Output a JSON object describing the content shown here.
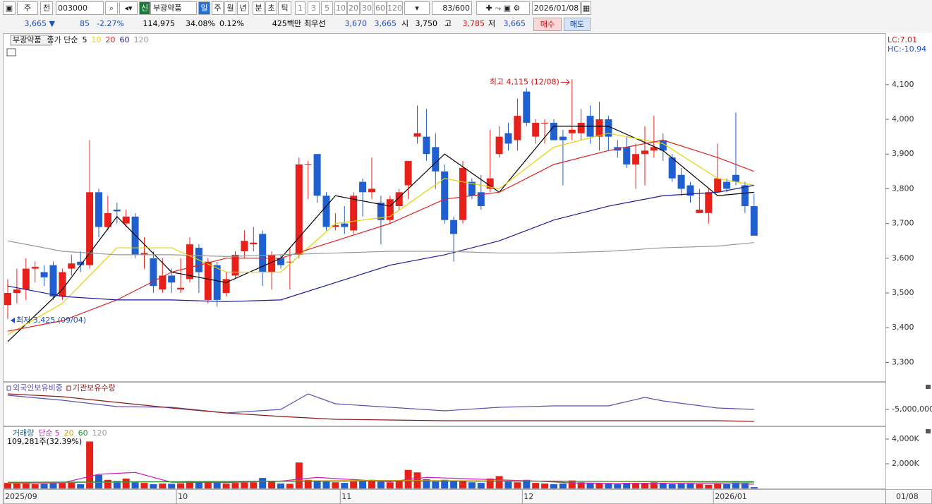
{
  "toolbar": {
    "row1": {
      "market": "주",
      "prev": "전",
      "code": "003000",
      "flag": "신",
      "name": "부광약품",
      "periods": [
        "일",
        "주",
        "월",
        "년",
        "분",
        "초",
        "틱"
      ],
      "minutes": [
        "1",
        "3",
        "5",
        "10",
        "20",
        "30",
        "60",
        "120"
      ],
      "count": "83/600",
      "date": "2026/01/08"
    },
    "row2": {
      "price": "3,665 ▼",
      "change": "85",
      "change_pct": "-2.27%",
      "volume": "114,975",
      "vol_ratio": "34.08%",
      "turnover": "0.12%",
      "amount": "425백만",
      "best_label": "최우선",
      "ask": "3,670",
      "bid": "3,665",
      "open_label": "시",
      "open": "3,750",
      "high_label": "고",
      "high": "3,785",
      "low_label": "저",
      "low": "3,665",
      "buy": "매수",
      "sell": "매도"
    }
  },
  "chart_data": [
    {
      "type": "candlestick",
      "name": "부광약품",
      "legend_title": "종가 단순",
      "up_color": "#e8201a",
      "down_color": "#1f5fd0",
      "lc": "LC:7.01",
      "hc": "HC:-10.94",
      "ylim": [
        3246,
        4246
      ],
      "yticks": [
        {
          "value": 3300,
          "label": "3,300"
        },
        {
          "value": 3400,
          "label": "3,400"
        },
        {
          "value": 3500,
          "label": "3,500"
        },
        {
          "value": 3600,
          "label": "3,600"
        },
        {
          "value": 3700,
          "label": "3,700"
        },
        {
          "value": 3800,
          "label": "3,800"
        },
        {
          "value": 3900,
          "label": "3,900"
        },
        {
          "value": 4000,
          "label": "4,000"
        },
        {
          "value": 4100,
          "label": "4,100"
        }
      ],
      "open": [
        3465,
        3500,
        3510,
        3570,
        3560,
        3580,
        3490,
        3570,
        3590,
        3580,
        3790,
        3690,
        3740,
        3700,
        3720,
        3610,
        3600,
        3510,
        3550,
        3510,
        3540,
        3630,
        3480,
        3580,
        3500,
        3550,
        3620,
        3640,
        3670,
        3560,
        3600,
        3590,
        3610,
        3870,
        3900,
        3780,
        3690,
        3700,
        3680,
        3820,
        3790,
        3760,
        3710,
        3750,
        3810,
        3950,
        3950,
        3920,
        3850,
        3710,
        3710,
        3820,
        3790,
        3800,
        3900,
        3960,
        3940,
        4080,
        3950,
        3990,
        3990,
        3950,
        3960,
        3960,
        4010,
        3950,
        4000,
        3920,
        3920,
        3870,
        3900,
        3910,
        3940,
        3890,
        3840,
        3810,
        3730,
        3730,
        3790,
        3820,
        3840,
        3810,
        3750
      ],
      "high": [
        3540,
        3570,
        3600,
        3590,
        3580,
        3590,
        3570,
        3610,
        3620,
        3940,
        3800,
        3780,
        3760,
        3740,
        3730,
        3660,
        3620,
        3600,
        3570,
        3600,
        3660,
        3640,
        3600,
        3590,
        3560,
        3620,
        3680,
        3690,
        3680,
        3620,
        3610,
        3630,
        3890,
        3880,
        3900,
        3790,
        3730,
        3750,
        3790,
        3830,
        3890,
        3780,
        3780,
        3800,
        3880,
        4040,
        4030,
        3960,
        3870,
        3720,
        3880,
        3830,
        3840,
        3970,
        3980,
        3990,
        4060,
        4090,
        4000,
        4000,
        4000,
        3970,
        4115,
        4030,
        4040,
        4050,
        4010,
        3940,
        3950,
        3930,
        3980,
        4010,
        3960,
        3900,
        3860,
        3820,
        3800,
        3800,
        3930,
        3830,
        4020,
        3820,
        3785
      ],
      "low": [
        3425,
        3470,
        3480,
        3530,
        3520,
        3480,
        3480,
        3550,
        3560,
        3570,
        3660,
        3680,
        3700,
        3690,
        3600,
        3570,
        3500,
        3500,
        3500,
        3500,
        3530,
        3500,
        3470,
        3460,
        3490,
        3540,
        3600,
        3620,
        3520,
        3510,
        3570,
        3510,
        3600,
        3770,
        3760,
        3680,
        3680,
        3670,
        3670,
        3720,
        3770,
        3640,
        3700,
        3740,
        3770,
        3930,
        3880,
        3800,
        3700,
        3590,
        3700,
        3770,
        3740,
        3790,
        3890,
        3910,
        3910,
        3980,
        3930,
        3930,
        3940,
        3810,
        3940,
        3940,
        3930,
        3910,
        3910,
        3890,
        3860,
        3800,
        3810,
        3890,
        3880,
        3820,
        3780,
        3760,
        3730,
        3700,
        3790,
        3790,
        3810,
        3730,
        3665
      ],
      "close": [
        3500,
        3510,
        3570,
        3575,
        3545,
        3490,
        3560,
        3585,
        3580,
        3790,
        3690,
        3730,
        3735,
        3720,
        3610,
        3615,
        3520,
        3550,
        3530,
        3515,
        3640,
        3560,
        3590,
        3480,
        3540,
        3610,
        3650,
        3645,
        3560,
        3610,
        3580,
        3590,
        3870,
        3870,
        3780,
        3690,
        3695,
        3690,
        3780,
        3790,
        3800,
        3710,
        3770,
        3790,
        3880,
        3960,
        3900,
        3850,
        3710,
        3670,
        3860,
        3780,
        3750,
        3830,
        3950,
        3930,
        4010,
        3990,
        3990,
        3990,
        3940,
        3940,
        3970,
        3990,
        3950,
        4000,
        3950,
        3910,
        3870,
        3900,
        3910,
        3920,
        3910,
        3830,
        3800,
        3780,
        3740,
        3790,
        3830,
        3800,
        3820,
        3750,
        3665
      ],
      "series": [
        {
          "name": "5",
          "color": "#000000",
          "x": [
            0,
            6,
            12,
            18,
            24,
            30,
            36,
            42,
            48,
            54,
            60,
            66,
            72,
            78,
            82
          ],
          "values": [
            3360,
            3510,
            3720,
            3560,
            3530,
            3600,
            3780,
            3750,
            3900,
            3790,
            3980,
            3980,
            3910,
            3780,
            3790
          ]
        },
        {
          "name": "10",
          "color": "#e6d200",
          "x": [
            0,
            6,
            12,
            18,
            24,
            30,
            36,
            42,
            48,
            54,
            60,
            66,
            72,
            78,
            82
          ],
          "values": [
            3380,
            3470,
            3630,
            3630,
            3560,
            3560,
            3700,
            3720,
            3830,
            3800,
            3920,
            3960,
            3930,
            3830,
            3810
          ]
        },
        {
          "name": "20",
          "color": "#e02020",
          "x": [
            0,
            6,
            12,
            18,
            24,
            30,
            36,
            42,
            48,
            54,
            60,
            66,
            72,
            78,
            82
          ],
          "values": [
            3390,
            3420,
            3480,
            3560,
            3600,
            3600,
            3650,
            3700,
            3770,
            3790,
            3870,
            3910,
            3940,
            3890,
            3850
          ]
        },
        {
          "name": "60",
          "color": "#1a1a9a",
          "x": [
            0,
            6,
            12,
            18,
            24,
            30,
            36,
            42,
            48,
            54,
            60,
            66,
            72,
            78,
            82
          ],
          "values": [
            3520,
            3490,
            3480,
            3480,
            3475,
            3480,
            3530,
            3580,
            3610,
            3650,
            3710,
            3750,
            3780,
            3790,
            3810
          ]
        },
        {
          "name": "120",
          "color": "#999999",
          "x": [
            0,
            6,
            12,
            18,
            24,
            30,
            36,
            42,
            48,
            54,
            60,
            66,
            72,
            78,
            82
          ],
          "values": [
            3650,
            3620,
            3610,
            3610,
            3605,
            3610,
            3615,
            3620,
            3620,
            3615,
            3615,
            3620,
            3630,
            3635,
            3645
          ]
        }
      ],
      "annotations": [
        {
          "text": "최고 4,115 (12/08)",
          "index": 62,
          "value": 4115,
          "color": "#d01010",
          "side": "left"
        },
        {
          "text": "최저 3,425 (09/04)",
          "index": 0,
          "value": 3425,
          "color": "#1f4fc0",
          "side": "right"
        }
      ]
    },
    {
      "type": "line",
      "ylim": [
        -7000000,
        -1500000
      ],
      "yticks": [
        {
          "value": -5000000,
          "label": "-5,000,000"
        }
      ],
      "series": [
        {
          "name": "외국인보유비중",
          "color": "#5a4fb0",
          "x": [
            0,
            6,
            12,
            18,
            24,
            30,
            33,
            36,
            42,
            48,
            54,
            60,
            66,
            70,
            72,
            78,
            82
          ],
          "values": [
            -3000000,
            -3700000,
            -4600000,
            -4700000,
            -5500000,
            -5000000,
            -2800000,
            -4200000,
            -4700000,
            -5200000,
            -4700000,
            -4500000,
            -4500000,
            -3300000,
            -3800000,
            -4800000,
            -5000000
          ]
        },
        {
          "name": "기관보유수량",
          "color": "#8b1a1a",
          "x": [
            0,
            6,
            12,
            18,
            24,
            30,
            36,
            42,
            48,
            54,
            60,
            66,
            72,
            78,
            82
          ],
          "values": [
            -2800000,
            -3200000,
            -4000000,
            -4800000,
            -5500000,
            -6000000,
            -6400000,
            -6500000,
            -6600000,
            -6600000,
            -6600000,
            -6600000,
            -6600000,
            -6600000,
            -6700000
          ]
        }
      ]
    },
    {
      "type": "volume",
      "title": "거래량",
      "legend_title": "단순",
      "note": "109,281주(32.39%)",
      "ylim": [
        0,
        4970
      ],
      "yticks": [
        {
          "value": 2000,
          "label": "2,000K"
        },
        {
          "value": 4000,
          "label": "4,000K"
        }
      ],
      "values": [
        450,
        400,
        420,
        350,
        380,
        500,
        450,
        480,
        350,
        3800,
        1100,
        700,
        600,
        800,
        550,
        450,
        350,
        400,
        380,
        420,
        600,
        550,
        500,
        480,
        400,
        450,
        480,
        500,
        850,
        550,
        400,
        380,
        2100,
        700,
        650,
        550,
        500,
        450,
        550,
        600,
        700,
        550,
        500,
        600,
        1500,
        1300,
        750,
        550,
        700,
        600,
        650,
        500,
        450,
        800,
        1000,
        550,
        500,
        700,
        450,
        400,
        350,
        400,
        650,
        500,
        450,
        400,
        380,
        350,
        400,
        420,
        450,
        500,
        400,
        350,
        380,
        400,
        350,
        300,
        400,
        350,
        600,
        450,
        109
      ],
      "series": [
        {
          "name": "5",
          "color": "#d020c0",
          "x": [
            0,
            6,
            10,
            14,
            18,
            24,
            30,
            34,
            36,
            42,
            46,
            50,
            54,
            58,
            62,
            66,
            72,
            78,
            82
          ],
          "values": [
            420,
            450,
            1150,
            1300,
            500,
            480,
            600,
            900,
            800,
            550,
            900,
            800,
            700,
            600,
            450,
            420,
            420,
            400,
            350
          ]
        },
        {
          "name": "20",
          "color": "#e0a000",
          "x": [
            0,
            20,
            40,
            60,
            82
          ],
          "values": [
            450,
            550,
            650,
            600,
            480
          ]
        },
        {
          "name": "60",
          "color": "#2a8a2a",
          "x": [
            0,
            20,
            40,
            60,
            82
          ],
          "values": [
            500,
            550,
            600,
            580,
            550
          ]
        }
      ],
      "legend_extra": {
        "name": "120",
        "color": "#999999"
      }
    }
  ],
  "x_axis": {
    "ticks": [
      {
        "value": 0,
        "label": "2025/09"
      },
      {
        "value": 19,
        "label": "10"
      },
      {
        "value": 37,
        "label": "11"
      },
      {
        "value": 57,
        "label": "12"
      },
      {
        "value": 78,
        "label": "2026/01"
      }
    ],
    "last": "01/08"
  }
}
